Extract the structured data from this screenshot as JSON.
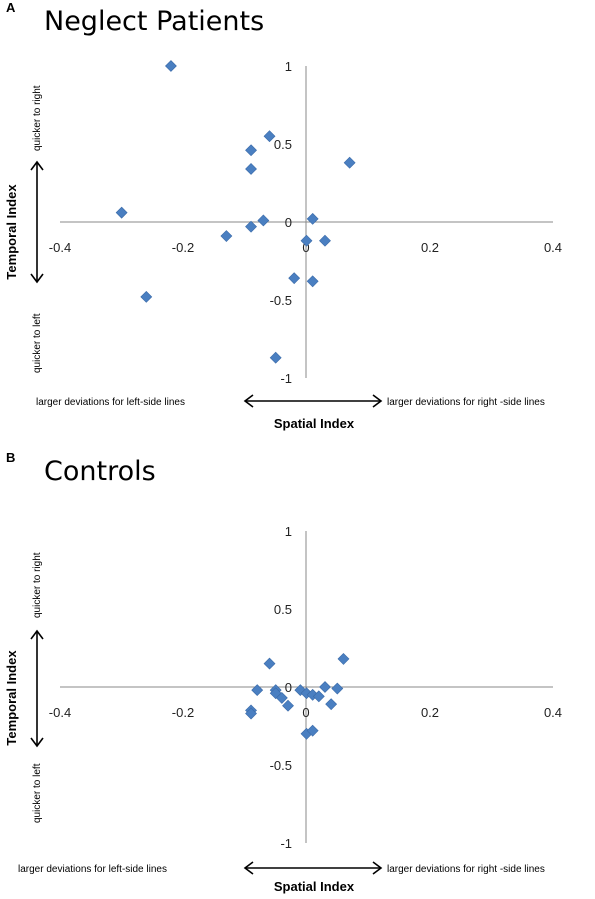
{
  "panels": [
    {
      "letter": "A",
      "title": "Neglect Patients",
      "x_axis_title": "Spatial Index",
      "y_axis_title": "Temporal Index",
      "x_left_annotation": "larger deviations for left-side lines",
      "x_right_annotation": "larger deviations for right -side lines",
      "y_top_annotation": "quicker to right",
      "y_bottom_annotation": "quicker to left",
      "x_ticks": [
        "-0.4",
        "-0.2",
        "0",
        "0.2",
        "0.4"
      ],
      "y_ticks": [
        "1",
        "0.5",
        "0",
        "-0.5",
        "-1"
      ]
    },
    {
      "letter": "B",
      "title": "Controls",
      "x_axis_title": "Spatial Index",
      "y_axis_title": "Temporal Index",
      "x_left_annotation": "larger deviations for left-side lines",
      "x_right_annotation": "larger deviations for right -side lines",
      "y_top_annotation": "quicker to right",
      "y_bottom_annotation": "quicker to left",
      "x_ticks": [
        "-0.4",
        "-0.2",
        "0",
        "0.2",
        "0.4"
      ],
      "y_ticks": [
        "1",
        "0.5",
        "0",
        "-0.5",
        "-1"
      ]
    }
  ],
  "chart_data": [
    {
      "type": "scatter",
      "title": "Neglect Patients",
      "xlabel": "Spatial Index",
      "ylabel": "Temporal Index",
      "xlim": [
        -0.4,
        0.4
      ],
      "ylim": [
        -1,
        1
      ],
      "grid": false,
      "marker": "diamond",
      "color": "#4a7fc1",
      "points": [
        {
          "x": -0.22,
          "y": 1.0
        },
        {
          "x": -0.06,
          "y": 0.55
        },
        {
          "x": -0.09,
          "y": 0.46
        },
        {
          "x": 0.07,
          "y": 0.38
        },
        {
          "x": -0.09,
          "y": 0.34
        },
        {
          "x": -0.3,
          "y": 0.06
        },
        {
          "x": 0.01,
          "y": 0.02
        },
        {
          "x": -0.07,
          "y": 0.01
        },
        {
          "x": -0.09,
          "y": -0.03
        },
        {
          "x": -0.13,
          "y": -0.09
        },
        {
          "x": 0.0,
          "y": -0.12
        },
        {
          "x": 0.03,
          "y": -0.12
        },
        {
          "x": -0.02,
          "y": -0.36
        },
        {
          "x": 0.01,
          "y": -0.38
        },
        {
          "x": -0.26,
          "y": -0.48
        },
        {
          "x": -0.05,
          "y": -0.87
        }
      ]
    },
    {
      "type": "scatter",
      "title": "Controls",
      "xlabel": "Spatial Index",
      "ylabel": "Temporal Index",
      "xlim": [
        -0.4,
        0.4
      ],
      "ylim": [
        -1,
        1
      ],
      "grid": false,
      "marker": "diamond",
      "color": "#4a7fc1",
      "points": [
        {
          "x": 0.06,
          "y": 0.18
        },
        {
          "x": -0.06,
          "y": 0.15
        },
        {
          "x": -0.08,
          "y": -0.02
        },
        {
          "x": -0.05,
          "y": -0.02
        },
        {
          "x": -0.05,
          "y": -0.04
        },
        {
          "x": -0.04,
          "y": -0.07
        },
        {
          "x": -0.03,
          "y": -0.12
        },
        {
          "x": -0.09,
          "y": -0.15
        },
        {
          "x": -0.09,
          "y": -0.17
        },
        {
          "x": -0.01,
          "y": -0.02
        },
        {
          "x": 0.0,
          "y": -0.04
        },
        {
          "x": 0.01,
          "y": -0.05
        },
        {
          "x": 0.02,
          "y": -0.06
        },
        {
          "x": 0.03,
          "y": 0.0
        },
        {
          "x": 0.05,
          "y": -0.01
        },
        {
          "x": 0.04,
          "y": -0.11
        },
        {
          "x": 0.0,
          "y": -0.3
        },
        {
          "x": 0.01,
          "y": -0.28
        }
      ]
    }
  ]
}
